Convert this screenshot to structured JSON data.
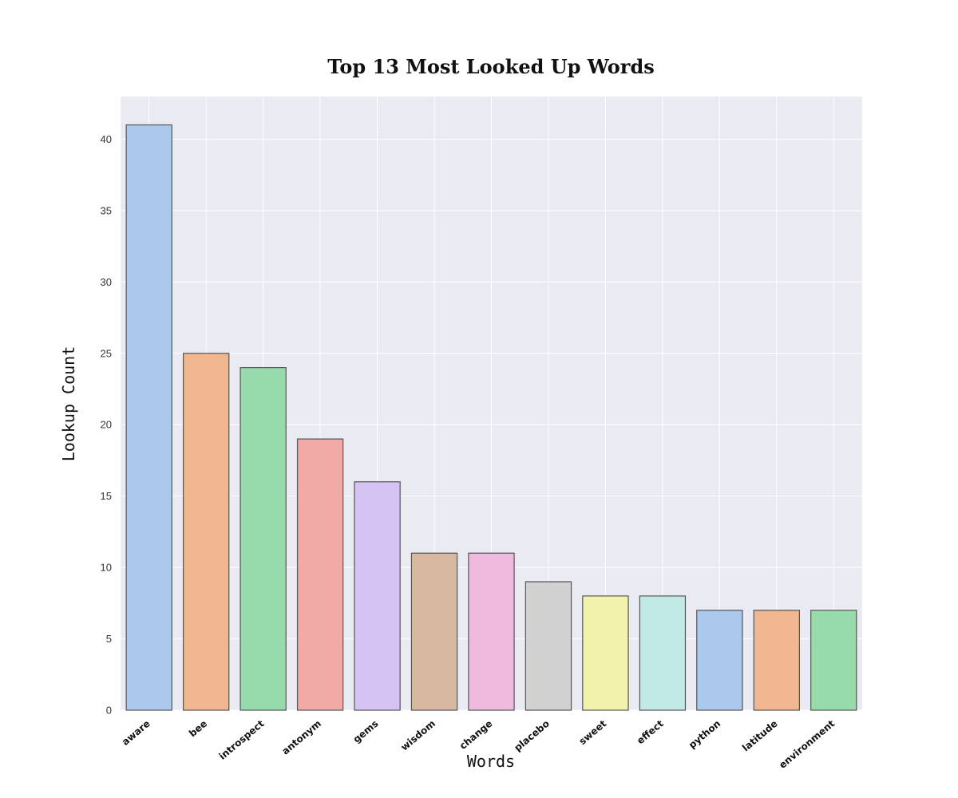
{
  "chart_data": {
    "type": "bar",
    "title": "Top 13 Most Looked Up Words",
    "xlabel": "Words",
    "ylabel": "Lookup Count",
    "categories": [
      "aware",
      "bee",
      "introspect",
      "antonym",
      "gems",
      "wisdom",
      "change",
      "placebo",
      "sweet",
      "effect",
      "python",
      "latitude",
      "environment"
    ],
    "values": [
      41,
      25,
      24,
      19,
      16,
      11,
      11,
      9,
      8,
      8,
      7,
      7,
      7
    ],
    "colors": [
      "#abc9ec",
      "#f0b690",
      "#98dbab",
      "#f1a9a6",
      "#d5c3f4",
      "#d6b9a0",
      "#f0b9de",
      "#d1d1d1",
      "#f3f2ad",
      "#c0e9e6",
      "#abc9ec",
      "#f0b690",
      "#98dbab"
    ],
    "ylim": [
      0,
      43
    ],
    "yticks": [
      "0",
      "5",
      "10",
      "15",
      "20",
      "25",
      "30",
      "35",
      "40"
    ],
    "grid": true,
    "background": "#eaeaf2",
    "grid_color": "#ffffff",
    "bar_edge_color": "#555555"
  }
}
